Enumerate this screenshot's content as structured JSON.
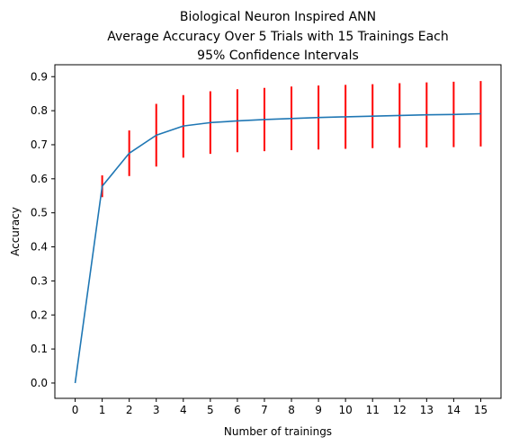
{
  "chart_data": {
    "type": "line",
    "title_lines": [
      "Biological Neuron Inspired ANN",
      "Average Accuracy Over 5 Trials with 15 Trainings Each",
      "95% Confidence Intervals"
    ],
    "xlabel": "Number of trainings",
    "ylabel": "Accuracy",
    "x": [
      0,
      1,
      2,
      3,
      4,
      5,
      6,
      7,
      8,
      9,
      10,
      11,
      12,
      13,
      14,
      15
    ],
    "series": [
      {
        "values": [
          0.0,
          0.578,
          0.675,
          0.728,
          0.755,
          0.765,
          0.77,
          0.774,
          0.777,
          0.78,
          0.782,
          0.784,
          0.786,
          0.788,
          0.789,
          0.791
        ],
        "error_low": [
          null,
          0.546,
          0.608,
          0.636,
          0.662,
          0.673,
          0.678,
          0.681,
          0.684,
          0.686,
          0.688,
          0.69,
          0.691,
          0.692,
          0.693,
          0.695
        ],
        "error_high": [
          null,
          0.61,
          0.742,
          0.82,
          0.846,
          0.857,
          0.863,
          0.867,
          0.871,
          0.874,
          0.876,
          0.878,
          0.881,
          0.883,
          0.885,
          0.887
        ],
        "line_color": "#1f77b4",
        "error_color": "#ff0000"
      }
    ],
    "xticks": [
      "0",
      "1",
      "2",
      "3",
      "4",
      "5",
      "6",
      "7",
      "8",
      "9",
      "10",
      "11",
      "12",
      "13",
      "14",
      "15"
    ],
    "yticks": [
      "0.0",
      "0.1",
      "0.2",
      "0.3",
      "0.4",
      "0.5",
      "0.6",
      "0.7",
      "0.8",
      "0.9"
    ],
    "ytick_values": [
      0.0,
      0.1,
      0.2,
      0.3,
      0.4,
      0.5,
      0.6,
      0.7,
      0.8,
      0.9
    ],
    "xlim": [
      -0.75,
      15.75
    ],
    "ylim": [
      -0.045,
      0.935
    ],
    "grid": false,
    "legend": "none"
  }
}
